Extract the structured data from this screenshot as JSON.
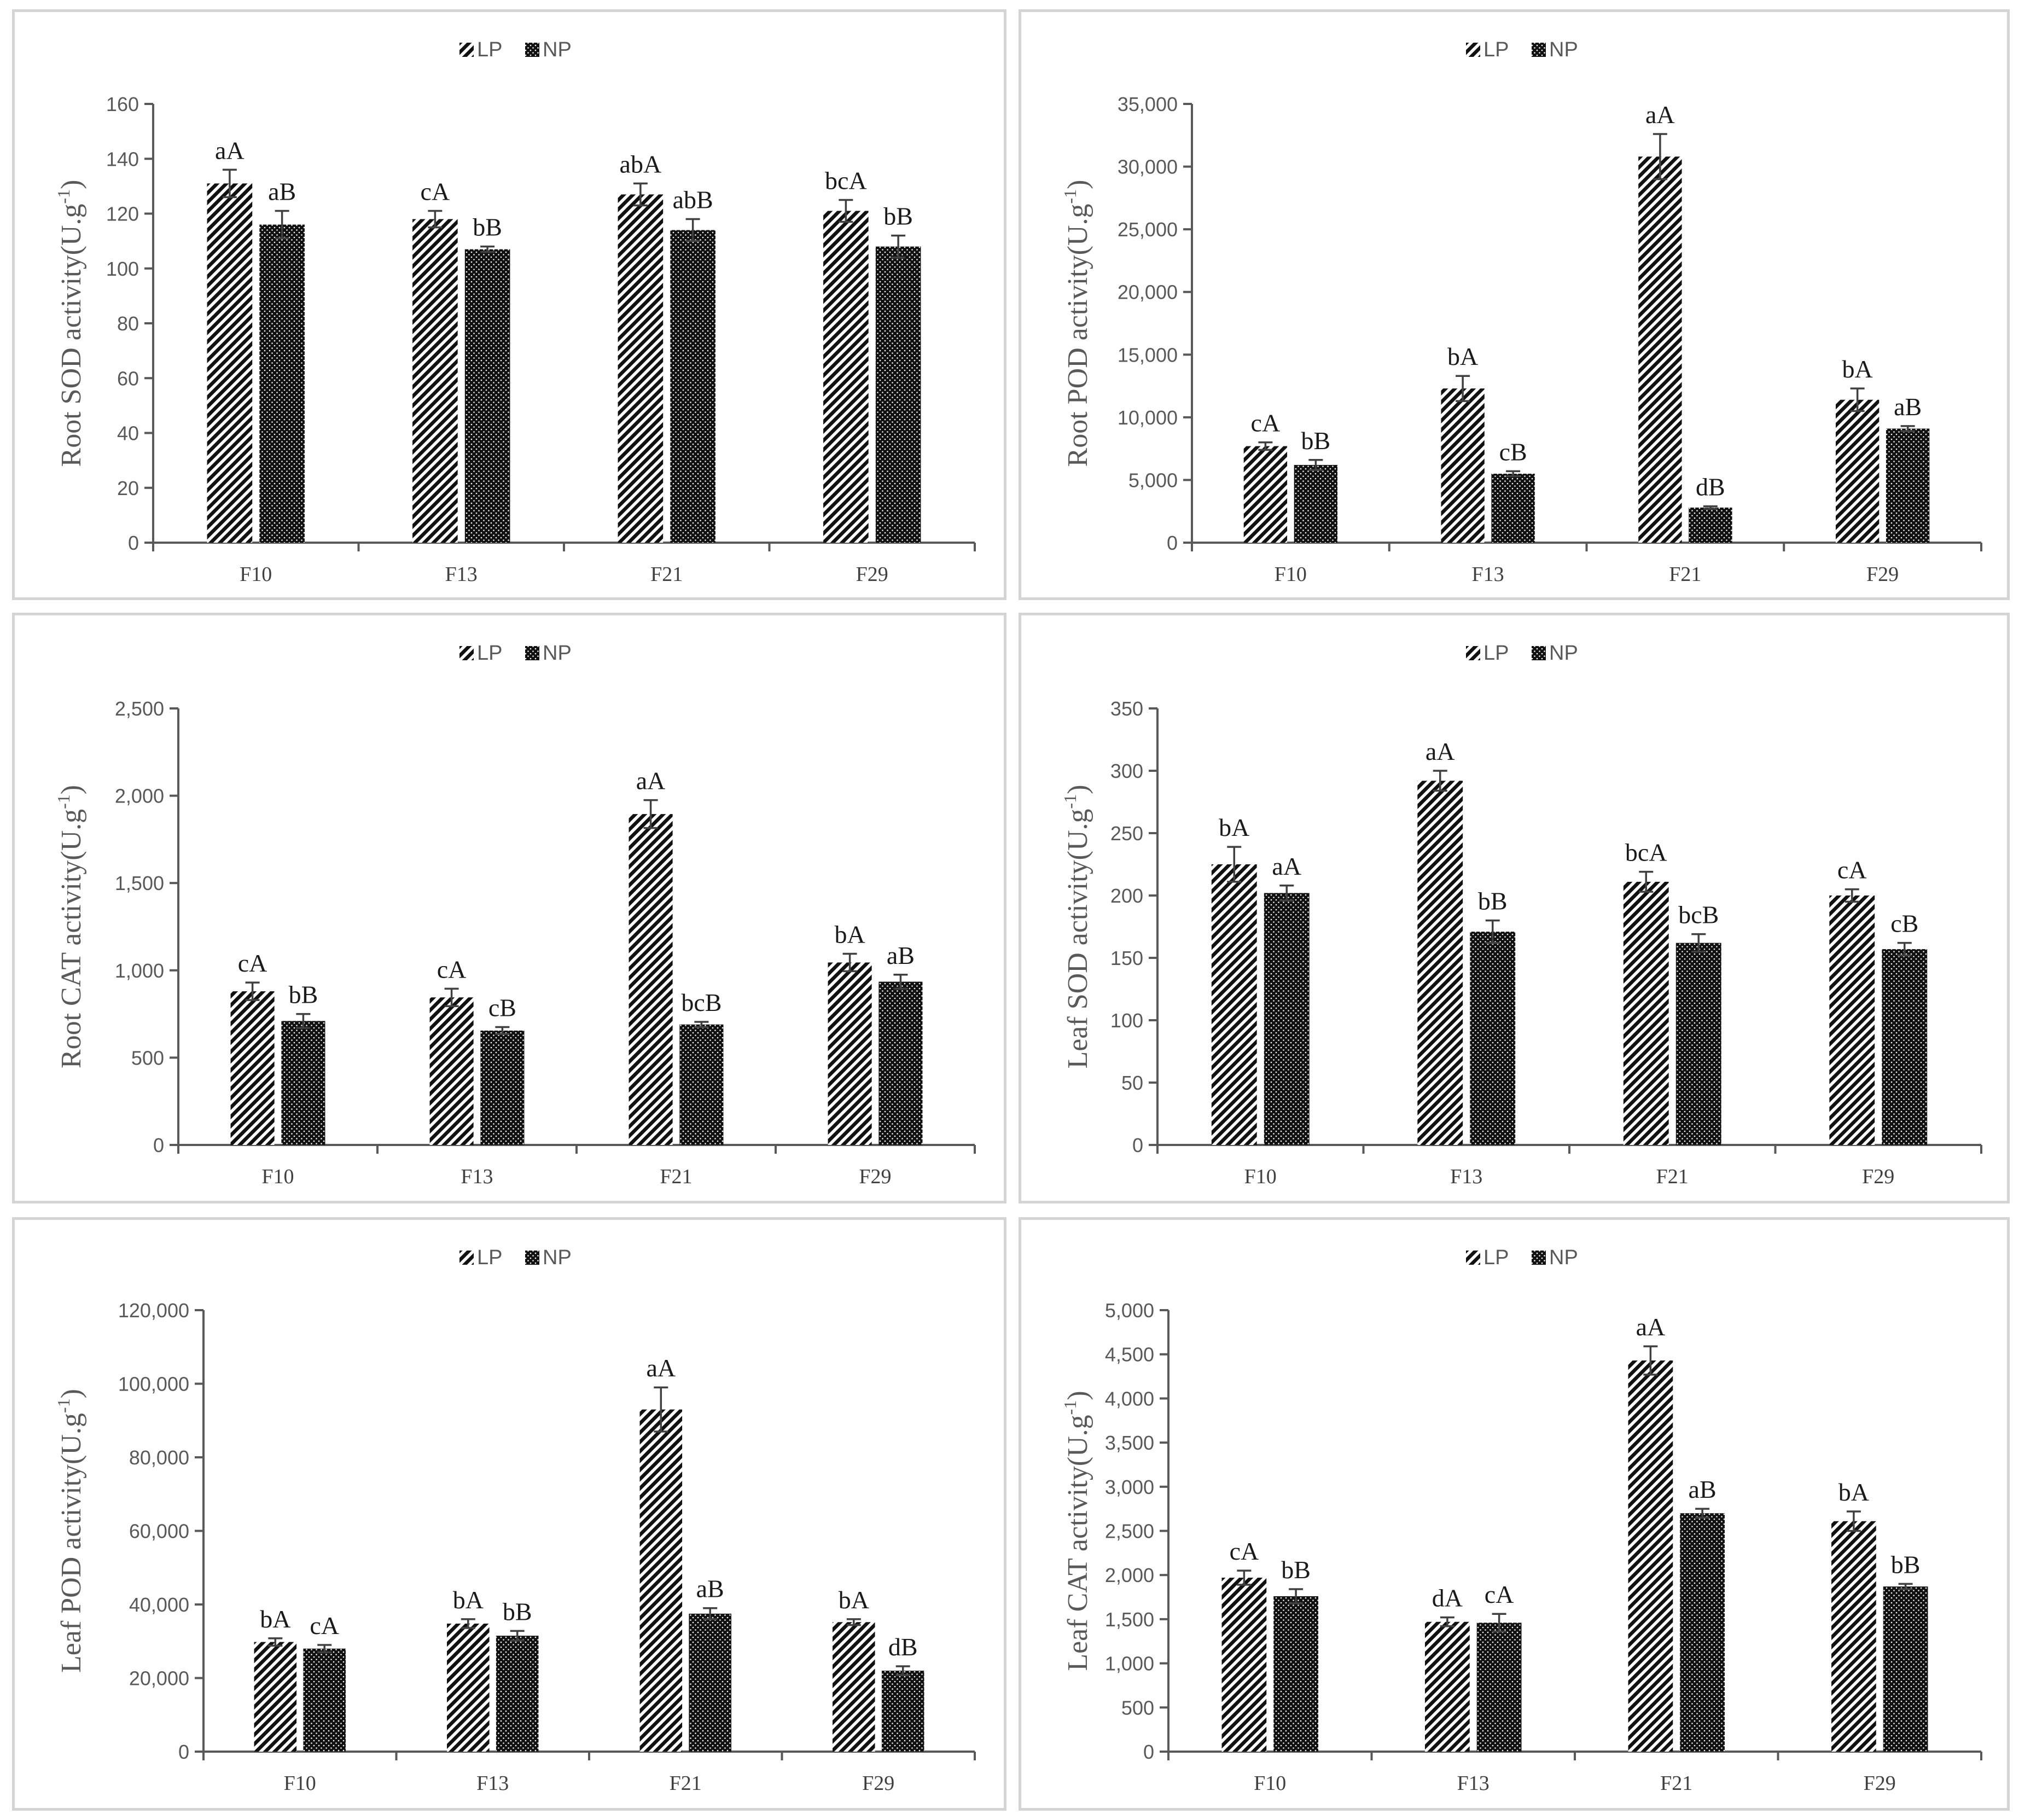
{
  "chart_data": [
    {
      "type": "bar",
      "title": "",
      "ylabel": "Root SOD activity(U.g",
      "ylabel_sup": "-1",
      "ylabel_end": ")",
      "categories": [
        "F10",
        "F13",
        "F21",
        "F29"
      ],
      "ylim": [
        0,
        160
      ],
      "yticks": [
        0,
        20,
        40,
        60,
        80,
        100,
        120,
        140,
        160
      ],
      "ytick_labels": [
        "0",
        "20",
        "40",
        "60",
        "80",
        "100",
        "120",
        "140",
        "160"
      ],
      "legend": [
        "LP",
        "NP"
      ],
      "series": [
        {
          "name": "LP",
          "values": [
            131,
            118,
            127,
            121
          ],
          "errors": [
            5,
            3,
            4,
            4
          ],
          "labels": [
            "aA",
            "cA",
            "abA",
            "bcA"
          ]
        },
        {
          "name": "NP",
          "values": [
            116,
            107,
            114,
            108
          ],
          "errors": [
            5,
            1,
            4,
            4
          ],
          "labels": [
            "aB",
            "bB",
            "abB",
            "bB"
          ]
        }
      ]
    },
    {
      "type": "bar",
      "title": "",
      "ylabel": "Root POD activity(U.g",
      "ylabel_sup": "-1",
      "ylabel_end": ")",
      "categories": [
        "F10",
        "F13",
        "F21",
        "F29"
      ],
      "ylim": [
        0,
        35000
      ],
      "yticks": [
        0,
        5000,
        10000,
        15000,
        20000,
        25000,
        30000,
        35000
      ],
      "ytick_labels": [
        "0",
        "5,000",
        "10,000",
        "15,000",
        "20,000",
        "25,000",
        "30,000",
        "35,000"
      ],
      "legend": [
        "LP",
        "NP"
      ],
      "series": [
        {
          "name": "LP",
          "values": [
            7700,
            12300,
            30800,
            11400
          ],
          "errors": [
            300,
            1000,
            1800,
            900
          ],
          "labels": [
            "cA",
            "bA",
            "aA",
            "bA"
          ]
        },
        {
          "name": "NP",
          "values": [
            6200,
            5500,
            2800,
            9100
          ],
          "errors": [
            400,
            200,
            100,
            200
          ],
          "labels": [
            "bB",
            "cB",
            "dB",
            "aB"
          ]
        }
      ]
    },
    {
      "type": "bar",
      "title": "",
      "ylabel": "Root CAT activity(U.g",
      "ylabel_sup": "-1",
      "ylabel_end": ")",
      "categories": [
        "F10",
        "F13",
        "F21",
        "F29"
      ],
      "ylim": [
        0,
        2500
      ],
      "yticks": [
        0,
        500,
        1000,
        1500,
        2000,
        2500
      ],
      "ytick_labels": [
        "0",
        "500",
        "1,000",
        "1,500",
        "2,000",
        "2,500"
      ],
      "legend": [
        "LP",
        "NP"
      ],
      "series": [
        {
          "name": "LP",
          "values": [
            880,
            845,
            1895,
            1045
          ],
          "errors": [
            50,
            50,
            80,
            50
          ],
          "labels": [
            "cA",
            "cA",
            "aA",
            "bA"
          ]
        },
        {
          "name": "NP",
          "values": [
            710,
            655,
            690,
            935
          ],
          "errors": [
            40,
            20,
            15,
            40
          ],
          "labels": [
            "bB",
            "cB",
            "bcB",
            "aB"
          ]
        }
      ]
    },
    {
      "type": "bar",
      "title": "",
      "ylabel": "Leaf SOD activity(U.g",
      "ylabel_sup": "-1",
      "ylabel_end": ")",
      "categories": [
        "F10",
        "F13",
        "F21",
        "F29"
      ],
      "ylim": [
        0,
        350
      ],
      "yticks": [
        0,
        50,
        100,
        150,
        200,
        250,
        300,
        350
      ],
      "ytick_labels": [
        "0",
        "50",
        "100",
        "150",
        "200",
        "250",
        "300",
        "350"
      ],
      "legend": [
        "LP",
        "NP"
      ],
      "series": [
        {
          "name": "LP",
          "values": [
            225,
            292,
            211,
            200
          ],
          "errors": [
            14,
            8,
            8,
            5
          ],
          "labels": [
            "bA",
            "aA",
            "bcA",
            "cA"
          ]
        },
        {
          "name": "NP",
          "values": [
            202,
            171,
            162,
            157
          ],
          "errors": [
            6,
            9,
            7,
            5
          ],
          "labels": [
            "aA",
            "bB",
            "bcB",
            "cB"
          ]
        }
      ]
    },
    {
      "type": "bar",
      "title": "",
      "ylabel": "Leaf POD activity(U.g",
      "ylabel_sup": "-1",
      "ylabel_end": ")",
      "categories": [
        "F10",
        "F13",
        "F21",
        "F29"
      ],
      "ylim": [
        0,
        120000
      ],
      "yticks": [
        0,
        20000,
        40000,
        60000,
        80000,
        100000,
        120000
      ],
      "ytick_labels": [
        "0",
        "20,000",
        "40,000",
        "60,000",
        "80,000",
        "100,000",
        "120,000"
      ],
      "legend": [
        "LP",
        "NP"
      ],
      "series": [
        {
          "name": "LP",
          "values": [
            29800,
            34800,
            93000,
            35200
          ],
          "errors": [
            1000,
            1200,
            6000,
            800
          ],
          "labels": [
            "bA",
            "bA",
            "aA",
            "bA"
          ]
        },
        {
          "name": "NP",
          "values": [
            28000,
            31500,
            37500,
            22000
          ],
          "errors": [
            1000,
            1300,
            1500,
            1200
          ],
          "labels": [
            "cA",
            "bB",
            "aB",
            "dB"
          ]
        }
      ]
    },
    {
      "type": "bar",
      "title": "",
      "ylabel": "Leaf CAT activity(U.g",
      "ylabel_sup": "-1",
      "ylabel_end": ")",
      "categories": [
        "F10",
        "F13",
        "F21",
        "F29"
      ],
      "ylim": [
        0,
        5000
      ],
      "yticks": [
        0,
        500,
        1000,
        1500,
        2000,
        2500,
        3000,
        3500,
        4000,
        4500,
        5000
      ],
      "ytick_labels": [
        "0",
        "500",
        "1,000",
        "1,500",
        "2,000",
        "2,500",
        "3,000",
        "3,500",
        "4,000",
        "4,500",
        "5,000"
      ],
      "legend": [
        "LP",
        "NP"
      ],
      "series": [
        {
          "name": "LP",
          "values": [
            1970,
            1470,
            4430,
            2610
          ],
          "errors": [
            80,
            50,
            160,
            110
          ],
          "labels": [
            "cA",
            "dA",
            "aA",
            "bA"
          ]
        },
        {
          "name": "NP",
          "values": [
            1760,
            1460,
            2700,
            1870
          ],
          "errors": [
            80,
            100,
            50,
            30
          ],
          "labels": [
            "bB",
            "cA",
            "aB",
            "bB"
          ]
        }
      ]
    }
  ]
}
